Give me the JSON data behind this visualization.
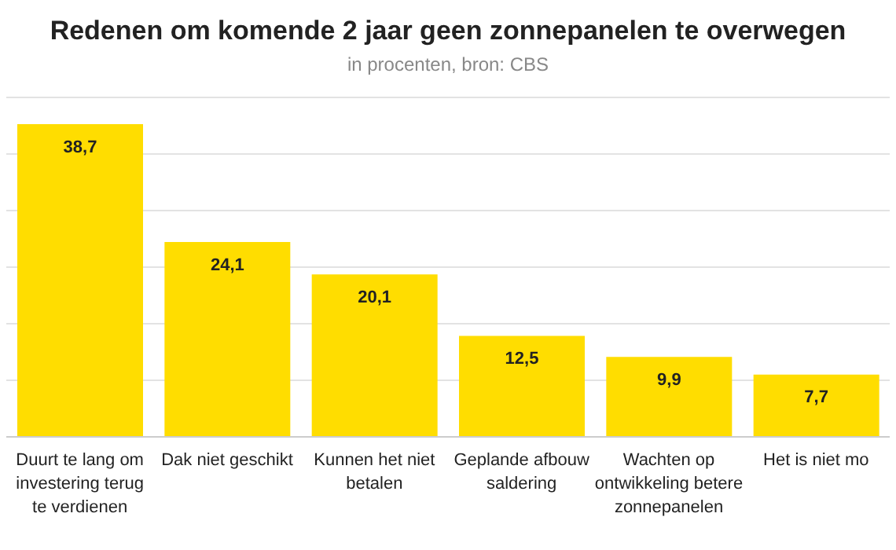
{
  "chart_data": {
    "type": "bar",
    "title": "Redenen om komende 2 jaar geen zonnepanelen te overwegen",
    "subtitle": "in procenten, bron: CBS",
    "categories": [
      "Duurt te lang om investering terug te verdienen",
      "Dak niet geschikt",
      "Kunnen het niet betalen",
      "Geplande afbouw saldering",
      "Wachten op ontwikkeling betere zonnepanelen",
      "Het is niet mo"
    ],
    "values": [
      38.7,
      24.1,
      20.1,
      12.5,
      9.9,
      7.7
    ],
    "color": "#ffdd00",
    "value_labels": [
      "38,7",
      "24,1",
      "20,1",
      "12,5",
      "9,9",
      "7,7"
    ],
    "grid": "y",
    "tick_labels": "x"
  }
}
